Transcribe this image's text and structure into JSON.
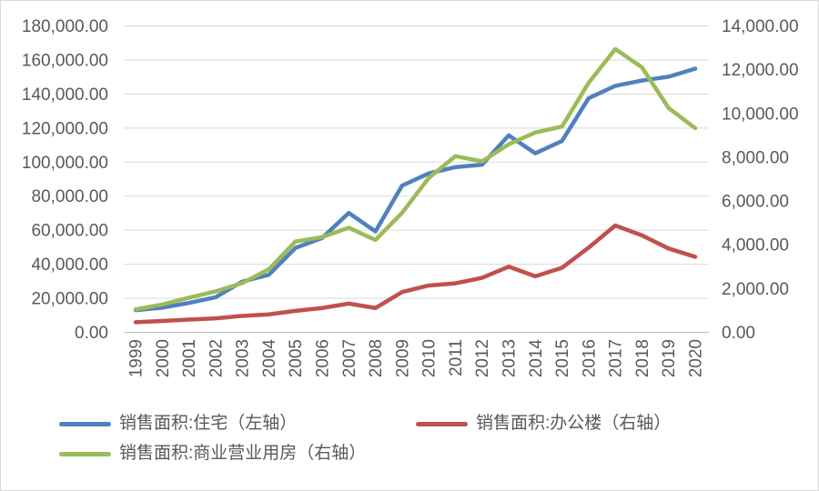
{
  "chart_data": {
    "type": "line",
    "title": "",
    "x_labels": [
      "1999",
      "2000",
      "2001",
      "2002",
      "2003",
      "2004",
      "2005",
      "2006",
      "2007",
      "2008",
      "2009",
      "2010",
      "2011",
      "2012",
      "2013",
      "2014",
      "2015",
      "2016",
      "2017",
      "2018",
      "2019",
      "2020"
    ],
    "left_axis": {
      "min": 0,
      "max": 180000,
      "step": 20000,
      "tick_labels": [
        "0.00",
        "20,000.00",
        "40,000.00",
        "60,000.00",
        "80,000.00",
        "100,000.00",
        "120,000.00",
        "140,000.00",
        "160,000.00",
        "180,000.00"
      ]
    },
    "right_axis": {
      "min": 0,
      "max": 14000,
      "step": 2000,
      "tick_labels": [
        "0.00",
        "2,000.00",
        "4,000.00",
        "6,000.00",
        "8,000.00",
        "10,000.00",
        "12,000.00",
        "14,000.00"
      ]
    },
    "grid": true,
    "legend_position": "bottom",
    "series": [
      {
        "name": "销售面积:住宅（左轴）",
        "axis": "left",
        "color": "#4F81BD",
        "values": [
          12998,
          14464,
          17241,
          20603,
          29779,
          33820,
          49588,
          55423,
          70136,
          59280,
          86185,
          93377,
          97030,
          98468,
          115723,
          105182,
          112406,
          137540,
          144789,
          147929,
          150144,
          154878
        ]
      },
      {
        "name": "销售面积:办公楼（右轴）",
        "axis": "right",
        "color": "#C0504D",
        "values": [
          460,
          520,
          580,
          640,
          750,
          820,
          980,
          1110,
          1315,
          1110,
          1840,
          2140,
          2240,
          2490,
          3000,
          2560,
          2950,
          3870,
          4880,
          4430,
          3830,
          3450
        ]
      },
      {
        "name": "销售面积:商业营业用房（右轴）",
        "axis": "right",
        "color": "#9BBB59",
        "values": [
          1050,
          1270,
          1580,
          1870,
          2250,
          2880,
          4150,
          4350,
          4780,
          4220,
          5460,
          7050,
          8050,
          7810,
          8590,
          9130,
          9400,
          11400,
          12940,
          12110,
          10250,
          9330
        ]
      }
    ]
  },
  "colors": {
    "gridline": "#D9D9D9",
    "axis_line": "#BFBFBF",
    "tick_text": "#595959"
  }
}
